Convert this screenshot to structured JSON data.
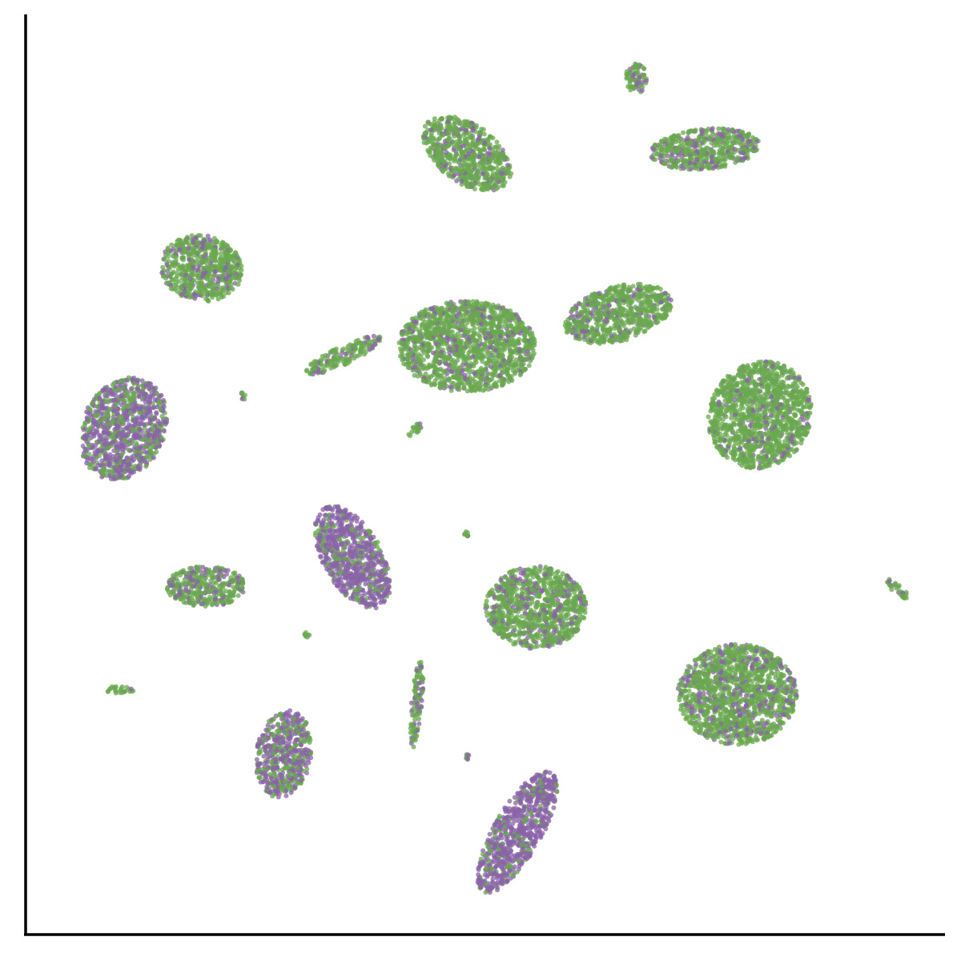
{
  "chart_data": {
    "type": "scatter",
    "title": "",
    "xlabel": "",
    "ylabel": "",
    "xlim": [
      0,
      100
    ],
    "ylim": [
      0,
      100
    ],
    "grid": false,
    "legend": "none",
    "ticks": "none",
    "series": [
      {
        "color": "#6aa84f",
        "marker": "circle",
        "description_of_clusters": [
          {
            "cx": 48.0,
            "cy": 85.0,
            "rx": 5.5,
            "ry": 3.2,
            "rot": -35,
            "weight": 0.82
          },
          {
            "cx": 74.0,
            "cy": 85.5,
            "rx": 6.0,
            "ry": 2.2,
            "rot": 5,
            "weight": 0.78
          },
          {
            "cx": 66.5,
            "cy": 93.2,
            "rx": 1.2,
            "ry": 1.6,
            "rot": 0,
            "weight": 0.78
          },
          {
            "cx": 19.0,
            "cy": 72.5,
            "rx": 4.5,
            "ry": 3.6,
            "rot": -10,
            "weight": 0.8
          },
          {
            "cx": 48.0,
            "cy": 64.0,
            "rx": 7.5,
            "ry": 5.0,
            "rot": 0,
            "weight": 0.85
          },
          {
            "cx": 64.5,
            "cy": 67.5,
            "rx": 6.0,
            "ry": 3.0,
            "rot": 15,
            "weight": 0.82
          },
          {
            "cx": 34.5,
            "cy": 63.0,
            "rx": 4.5,
            "ry": 1.0,
            "rot": 25,
            "weight": 0.75
          },
          {
            "cx": 10.5,
            "cy": 55.0,
            "rx": 4.5,
            "ry": 5.8,
            "rot": -25,
            "weight": 0.35
          },
          {
            "cx": 80.0,
            "cy": 56.5,
            "rx": 5.5,
            "ry": 6.0,
            "rot": -35,
            "weight": 0.9
          },
          {
            "cx": 19.5,
            "cy": 37.8,
            "rx": 4.3,
            "ry": 2.2,
            "rot": 0,
            "weight": 0.72
          },
          {
            "cx": 35.5,
            "cy": 41.0,
            "rx": 3.2,
            "ry": 6.2,
            "rot": 30,
            "weight": 0.25
          },
          {
            "cx": 55.5,
            "cy": 35.5,
            "rx": 5.5,
            "ry": 4.5,
            "rot": 0,
            "weight": 0.8
          },
          {
            "cx": 77.5,
            "cy": 26.0,
            "rx": 6.5,
            "ry": 5.5,
            "rot": 0,
            "weight": 0.78
          },
          {
            "cx": 28.0,
            "cy": 19.5,
            "rx": 3.0,
            "ry": 4.8,
            "rot": -10,
            "weight": 0.45
          },
          {
            "cx": 53.5,
            "cy": 11.0,
            "rx": 2.6,
            "ry": 7.5,
            "rot": -30,
            "weight": 0.18
          },
          {
            "cx": 42.5,
            "cy": 25.0,
            "rx": 0.6,
            "ry": 4.8,
            "rot": -5,
            "weight": 0.7
          },
          {
            "cx": 10.0,
            "cy": 26.5,
            "rx": 1.7,
            "ry": 0.4,
            "rot": 0,
            "weight": 0.8
          },
          {
            "cx": 95.0,
            "cy": 37.5,
            "rx": 1.6,
            "ry": 0.5,
            "rot": -40,
            "weight": 0.8
          },
          {
            "cx": 42.5,
            "cy": 55.0,
            "rx": 1.2,
            "ry": 0.4,
            "rot": 40,
            "weight": 0.8
          },
          {
            "cx": 23.5,
            "cy": 58.5,
            "rx": 0.3,
            "ry": 0.7,
            "rot": 0,
            "weight": 0.8
          },
          {
            "cx": 48.0,
            "cy": 43.5,
            "rx": 0.3,
            "ry": 0.3,
            "rot": 0,
            "weight": 0.8
          },
          {
            "cx": 30.5,
            "cy": 32.5,
            "rx": 0.3,
            "ry": 0.3,
            "rot": 0,
            "weight": 0.8
          },
          {
            "cx": 48.0,
            "cy": 19.2,
            "rx": 0.3,
            "ry": 0.3,
            "rot": 0,
            "weight": 0.8
          }
        ]
      },
      {
        "color": "#8a63a8",
        "marker": "circle"
      }
    ]
  }
}
